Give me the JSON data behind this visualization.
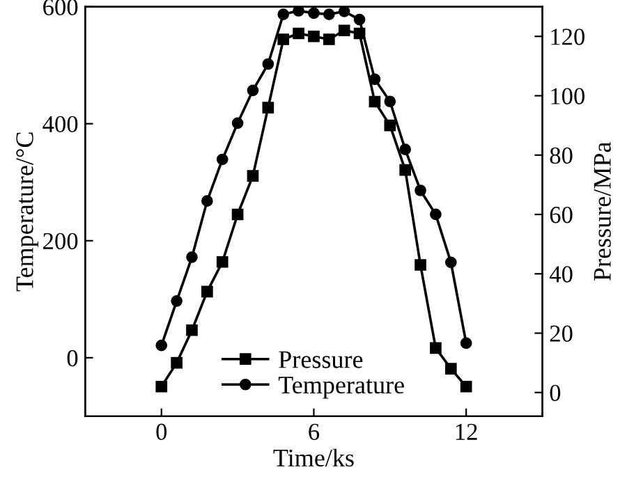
{
  "chart_data": {
    "type": "line",
    "xlabel": "Time/ks",
    "ylabel": "Temperature/°C",
    "y2label": "Pressure/MPa",
    "xlim": [
      -3,
      15
    ],
    "xticks": [
      0,
      6,
      12
    ],
    "ylim": [
      -100,
      600
    ],
    "yticks": [
      0,
      200,
      400,
      600
    ],
    "y2lim": [
      -8,
      130
    ],
    "y2ticks": [
      0,
      20,
      40,
      60,
      80,
      100,
      120
    ],
    "legend": "bottom",
    "grid": false,
    "line_style": "solid",
    "series": [
      {
        "name": "Pressure",
        "color": "#000000",
        "axis": "y2",
        "marker": "square",
        "x": [
          0,
          0.6,
          1.2,
          1.8,
          2.4,
          3.0,
          3.6,
          4.2,
          4.8,
          5.4,
          6.0,
          6.6,
          7.2,
          7.8,
          8.4,
          9.0,
          9.6,
          10.2,
          10.8,
          11.4,
          12.0
        ],
        "values": [
          2,
          10,
          21,
          34,
          44,
          60,
          73,
          96,
          119,
          121,
          120,
          119,
          122,
          121,
          98,
          90,
          75,
          43,
          15,
          8,
          2
        ]
      },
      {
        "name": "Temperature",
        "color": "#000000",
        "marker": "circle",
        "x": [
          0,
          0.6,
          1.2,
          1.8,
          2.4,
          3.0,
          3.6,
          4.2,
          4.8,
          5.4,
          6.0,
          6.6,
          7.2,
          7.8,
          8.4,
          9.0,
          9.6,
          10.2,
          10.8,
          11.4,
          12.0
        ],
        "values": [
          21,
          97,
          172,
          268,
          339,
          401,
          457,
          502,
          587,
          593,
          589,
          587,
          592,
          578,
          476,
          438,
          356,
          286,
          245,
          163,
          25
        ]
      }
    ]
  }
}
